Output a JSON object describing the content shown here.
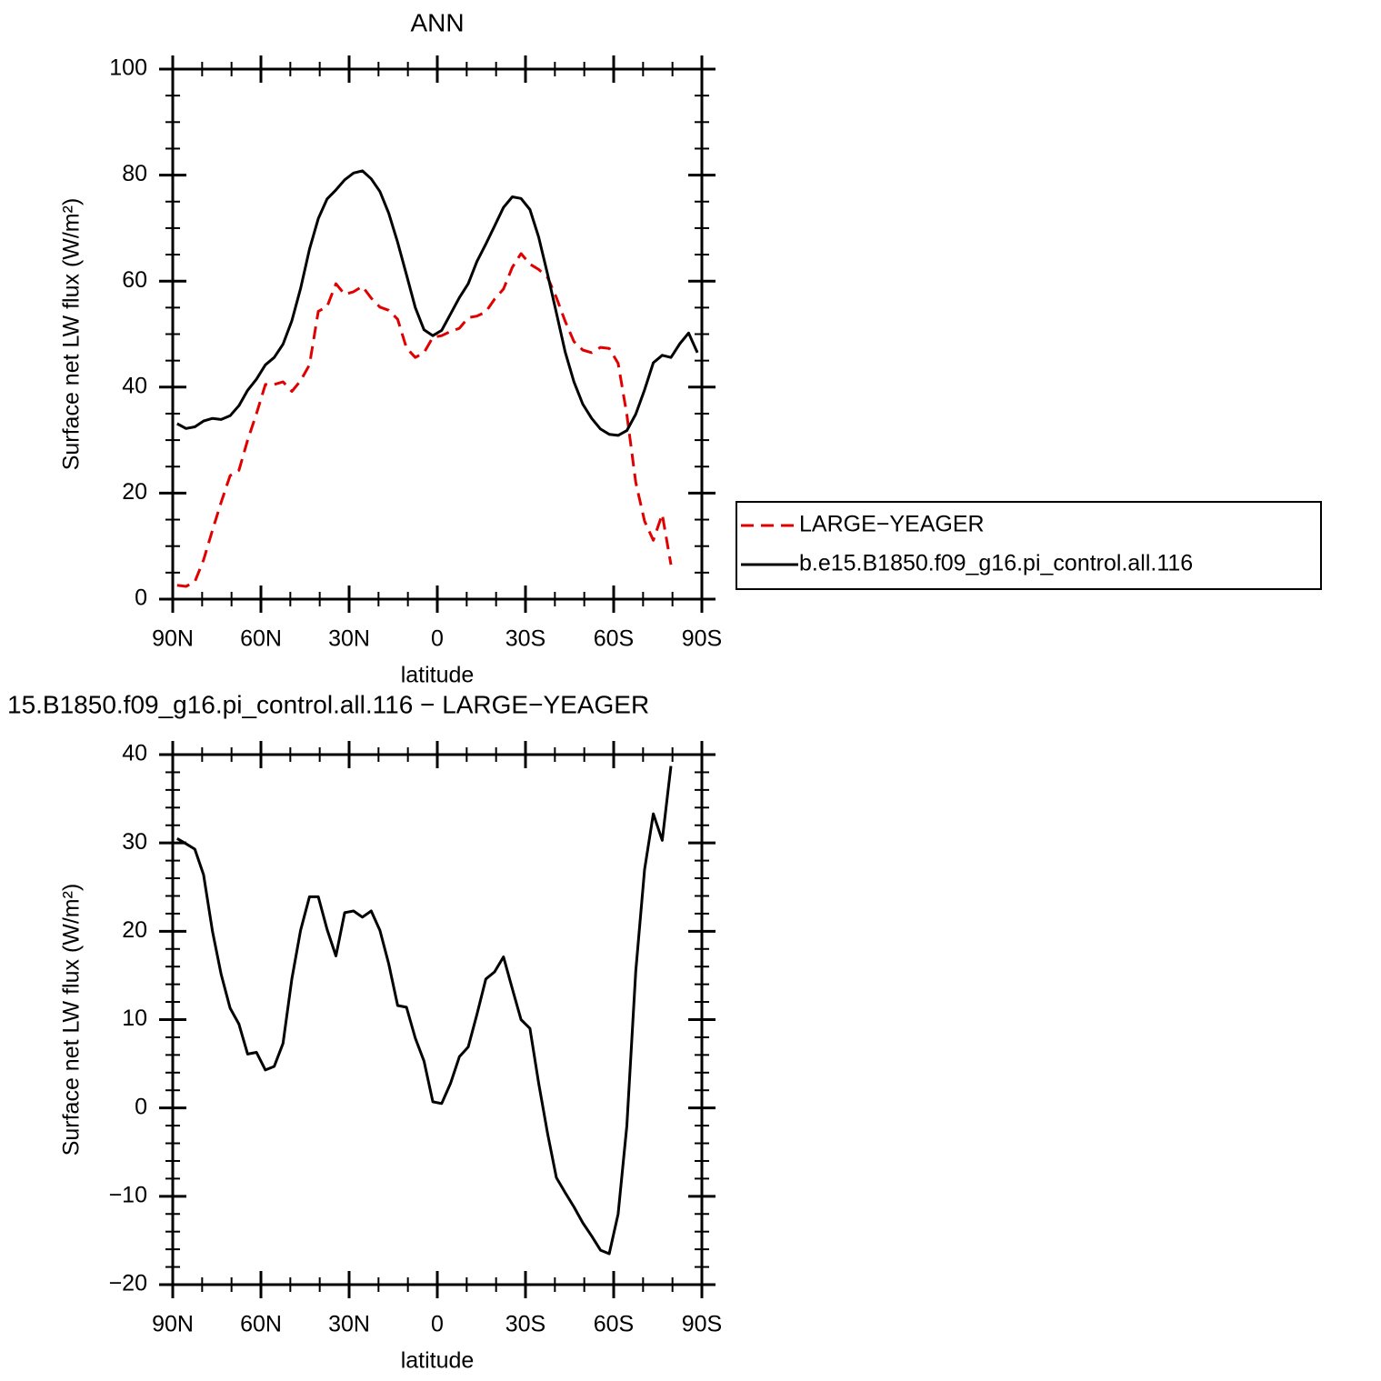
{
  "chart_data": [
    {
      "type": "line",
      "title": "ANN",
      "x_label": "latitude",
      "y_label": "Surface net LW flux (W/m²)",
      "x": [
        88.5,
        85.5,
        82.5,
        79.5,
        76.5,
        73.5,
        70.5,
        67.5,
        64.5,
        61.5,
        58.5,
        55.5,
        52.5,
        49.5,
        46.5,
        43.5,
        40.5,
        37.5,
        34.5,
        31.5,
        28.5,
        25.5,
        22.5,
        19.5,
        16.5,
        13.5,
        10.5,
        7.5,
        4.5,
        1.5,
        -1.5,
        -4.5,
        -7.5,
        -10.5,
        -13.5,
        -16.5,
        -19.5,
        -22.5,
        -25.5,
        -28.5,
        -31.5,
        -34.5,
        -37.5,
        -40.5,
        -43.5,
        -46.5,
        -49.5,
        -52.5,
        -55.5,
        -58.5,
        -61.5,
        -64.5,
        -67.5,
        -70.5,
        -73.5,
        -76.5,
        -79.5,
        -82.5,
        -85.5,
        -88.5
      ],
      "xlim": [
        90,
        -90
      ],
      "xticks": [
        {
          "value": 90,
          "label": "90N"
        },
        {
          "value": 60,
          "label": "60N"
        },
        {
          "value": 30,
          "label": "30N"
        },
        0,
        {
          "value": -30,
          "label": "30S"
        },
        {
          "value": -60,
          "label": "60S"
        },
        {
          "value": -90,
          "label": "90S"
        }
      ],
      "ylim": [
        0,
        100
      ],
      "yticks": [
        0,
        20,
        40,
        60,
        80,
        100
      ],
      "legend": "outside-right",
      "series": [
        {
          "name": "LARGE−YEAGER",
          "color": "#e00000",
          "dash": "dashed",
          "values": [
            2.6,
            2.4,
            3.3,
            7.4,
            13,
            18.3,
            23.3,
            24.3,
            30,
            35,
            40.5,
            40.5,
            41,
            39.2,
            41.2,
            44.2,
            54.3,
            55.2,
            59.5,
            57.5,
            58,
            59,
            56.8,
            55.1,
            54.5,
            52.8,
            47.4,
            45.6,
            46.5,
            49.4,
            49.7,
            50.5,
            51.1,
            53.1,
            53.4,
            54.2,
            56.6,
            58.5,
            62.6,
            65.2,
            63.2,
            62.2,
            60.7,
            56.9,
            52.4,
            48.6,
            47,
            46.5,
            47.5,
            47.3,
            44.5,
            34.8,
            22,
            14.7,
            11.1,
            16,
            6.5,
            null,
            null,
            null
          ]
        },
        {
          "name": "b.e15.B1850.f09_g16.pi_control.all.116",
          "color": "#000000",
          "dash": "solid",
          "values": [
            33.1,
            32.2,
            32.5,
            33.6,
            34.1,
            33.9,
            34.6,
            36.5,
            39.4,
            41.5,
            44.2,
            45.6,
            48.1,
            52.5,
            58.6,
            66,
            71.8,
            75.5,
            77.2,
            79.1,
            80.4,
            80.8,
            79.3,
            76.9,
            72.8,
            67.3,
            61.2,
            55,
            50.8,
            49.7,
            50.7,
            53.8,
            56.9,
            59.5,
            63.7,
            67,
            70.4,
            73.9,
            75.9,
            75.6,
            73.5,
            68.3,
            61.3,
            54,
            46.6,
            41,
            36.8,
            34.1,
            32.1,
            31.1,
            30.9,
            31.8,
            34.9,
            39.5,
            44.6,
            46,
            45.6,
            48.2,
            50.2,
            46.5
          ]
        }
      ]
    },
    {
      "type": "line",
      "title": "15.B1850.f09_g16.pi_control.all.116 − LARGE−YEAGER",
      "x_label": "latitude",
      "y_label": "Surface net LW flux (W/m²)",
      "x": [
        88.5,
        85.5,
        82.5,
        79.5,
        76.5,
        73.5,
        70.5,
        67.5,
        64.5,
        61.5,
        58.5,
        55.5,
        52.5,
        49.5,
        46.5,
        43.5,
        40.5,
        37.5,
        34.5,
        31.5,
        28.5,
        25.5,
        22.5,
        19.5,
        16.5,
        13.5,
        10.5,
        7.5,
        4.5,
        1.5,
        -1.5,
        -4.5,
        -7.5,
        -10.5,
        -13.5,
        -16.5,
        -19.5,
        -22.5,
        -25.5,
        -28.5,
        -31.5,
        -34.5,
        -37.5,
        -40.5,
        -43.5,
        -46.5,
        -49.5,
        -52.5,
        -55.5,
        -58.5,
        -61.5,
        -64.5,
        -67.5,
        -70.5,
        -73.5,
        -76.5,
        -79.5,
        -82.5,
        -85.5,
        -88.5
      ],
      "xlim": [
        90,
        -90
      ],
      "xticks": [
        {
          "value": 90,
          "label": "90N"
        },
        {
          "value": 60,
          "label": "60N"
        },
        {
          "value": 30,
          "label": "30N"
        },
        0,
        {
          "value": -30,
          "label": "30S"
        },
        {
          "value": -60,
          "label": "60S"
        },
        {
          "value": -90,
          "label": "90S"
        }
      ],
      "ylim": [
        -20,
        40
      ],
      "yticks": [
        {
          "value": -20,
          "label": "−20"
        },
        {
          "value": -10,
          "label": "−10"
        },
        0,
        10,
        20,
        30,
        40
      ],
      "series": [
        {
          "color": "#000000",
          "dash": "solid",
          "values": [
            30.5,
            29.9,
            29.3,
            26.4,
            20,
            15.1,
            11.3,
            9.5,
            6.1,
            6.3,
            4.3,
            4.7,
            7.3,
            14.6,
            20.1,
            23.9,
            23.9,
            20.2,
            17.2,
            22.1,
            22.3,
            21.6,
            22.3,
            20.1,
            16.3,
            11.6,
            11.4,
            7.9,
            5.3,
            0.7,
            0.5,
            2.8,
            5.8,
            6.9,
            10.6,
            14.6,
            15.4,
            17.1,
            13.5,
            10,
            9,
            2.8,
            -2.9,
            -7.9,
            -9.6,
            -11.2,
            -13,
            -14.5,
            -16.1,
            -16.5,
            -12,
            -2,
            15.5,
            27,
            33.3,
            30.3,
            38.7,
            null,
            null,
            null
          ]
        }
      ]
    }
  ]
}
